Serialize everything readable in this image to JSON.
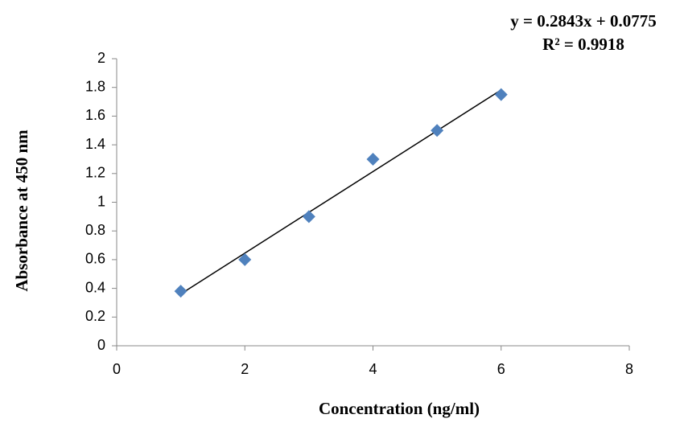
{
  "chart_data": {
    "type": "scatter",
    "x_label": "Concentration (ng/ml)",
    "y_label": "Absorbance  at 450 nm",
    "annotations": [
      "y = 0.2843x + 0.0775",
      "R² = 0.9918"
    ],
    "x": [
      1,
      2,
      3,
      4,
      5,
      6
    ],
    "values": [
      0.38,
      0.6,
      0.9,
      1.3,
      1.5,
      1.75
    ],
    "color": "#4f81bd",
    "trendline": true,
    "xlim": [
      0,
      8
    ],
    "xticks": [
      0,
      2,
      4,
      6,
      8
    ],
    "ylim": [
      0,
      2
    ],
    "yticks": [
      0,
      0.2,
      0.4,
      0.6,
      0.8,
      1,
      1.2,
      1.4,
      1.6,
      1.8,
      2
    ],
    "grid": false
  }
}
